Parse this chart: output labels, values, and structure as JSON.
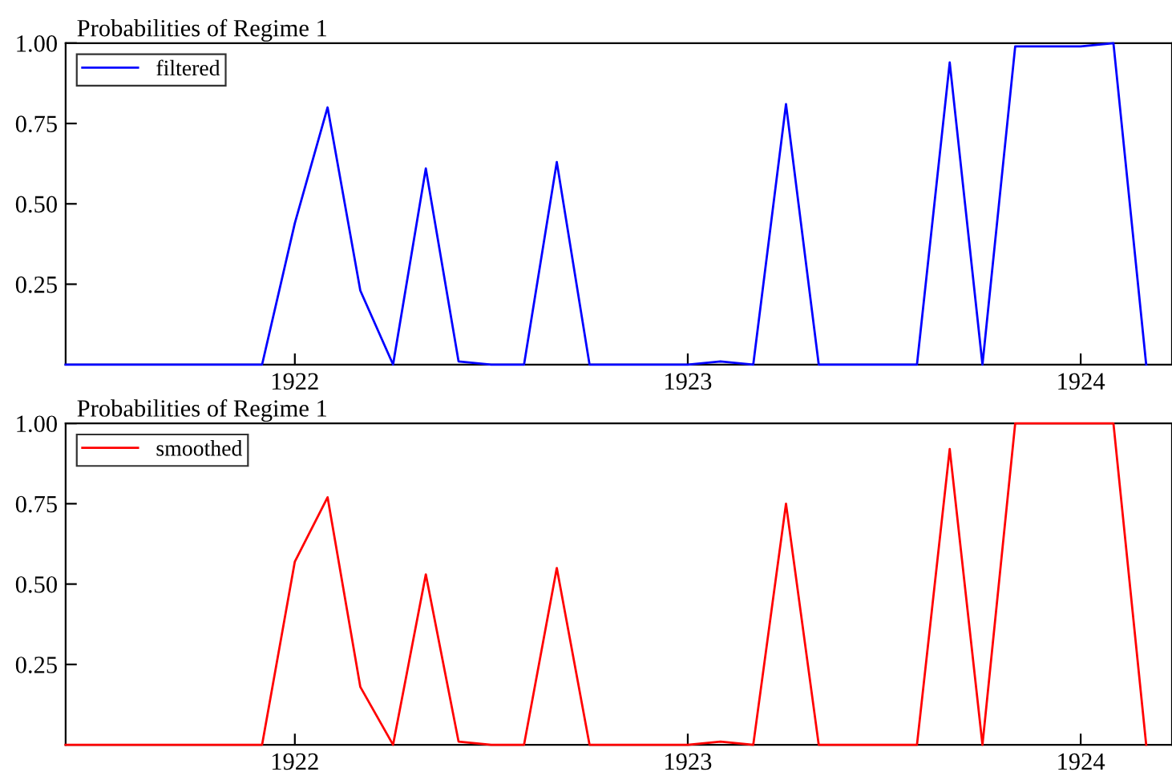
{
  "chart_data": [
    {
      "type": "line",
      "title": "Probabilities of Regime 1",
      "x": [
        "1921-06",
        "1921-07",
        "1921-08",
        "1921-09",
        "1921-10",
        "1921-11",
        "1921-12",
        "1922-01",
        "1922-02",
        "1922-03",
        "1922-04",
        "1922-05",
        "1922-06",
        "1922-07",
        "1922-08",
        "1922-09",
        "1922-10",
        "1922-11",
        "1922-12",
        "1923-01",
        "1923-02",
        "1923-03",
        "1923-04",
        "1923-05",
        "1923-06",
        "1923-07",
        "1923-08",
        "1923-09",
        "1923-10",
        "1923-11",
        "1923-12",
        "1924-01",
        "1924-02",
        "1924-03"
      ],
      "series": [
        {
          "name": "filtered",
          "color": "#0000ff",
          "values": [
            0,
            0,
            0,
            0,
            0,
            0,
            0,
            0.44,
            0.8,
            0.23,
            0,
            0.61,
            0.01,
            0,
            0,
            0.63,
            0,
            0,
            0,
            0,
            0.01,
            0,
            0.81,
            0,
            0,
            0,
            0,
            0.94,
            0,
            0.99,
            0.99,
            0.99,
            1.0,
            0
          ]
        }
      ],
      "xlim": [
        "1921-06",
        "1924-03-25"
      ],
      "xticks": [
        {
          "value": "1922-01",
          "label": "1922"
        },
        {
          "value": "1923-01",
          "label": "1923"
        },
        {
          "value": "1924-01",
          "label": "1924"
        }
      ],
      "ylim": [
        0,
        1
      ],
      "yticks": [
        {
          "value": 0.25,
          "label": "0.25"
        },
        {
          "value": 0.5,
          "label": "0.50"
        },
        {
          "value": 0.75,
          "label": "0.75"
        },
        {
          "value": 1.0,
          "label": "1.00"
        }
      ],
      "legend": "top left",
      "grid": false
    },
    {
      "type": "line",
      "title": "Probabilities of Regime 1",
      "x": [
        "1921-06",
        "1921-07",
        "1921-08",
        "1921-09",
        "1921-10",
        "1921-11",
        "1921-12",
        "1922-01",
        "1922-02",
        "1922-03",
        "1922-04",
        "1922-05",
        "1922-06",
        "1922-07",
        "1922-08",
        "1922-09",
        "1922-10",
        "1922-11",
        "1922-12",
        "1923-01",
        "1923-02",
        "1923-03",
        "1923-04",
        "1923-05",
        "1923-06",
        "1923-07",
        "1923-08",
        "1923-09",
        "1923-10",
        "1923-11",
        "1923-12",
        "1924-01",
        "1924-02",
        "1924-03"
      ],
      "series": [
        {
          "name": "smoothed",
          "color": "#ff0000",
          "values": [
            0,
            0,
            0,
            0,
            0,
            0,
            0,
            0.57,
            0.77,
            0.18,
            0,
            0.53,
            0.01,
            0,
            0,
            0.55,
            0,
            0,
            0,
            0,
            0.01,
            0,
            0.75,
            0,
            0,
            0,
            0,
            0.92,
            0,
            1.0,
            1.0,
            1.0,
            1.0,
            0
          ]
        }
      ],
      "xlim": [
        "1921-06",
        "1924-03-25"
      ],
      "xticks": [
        {
          "value": "1922-01",
          "label": "1922"
        },
        {
          "value": "1923-01",
          "label": "1923"
        },
        {
          "value": "1924-01",
          "label": "1924"
        }
      ],
      "ylim": [
        0,
        1
      ],
      "yticks": [
        {
          "value": 0.25,
          "label": "0.25"
        },
        {
          "value": 0.5,
          "label": "0.50"
        },
        {
          "value": 0.75,
          "label": "0.75"
        },
        {
          "value": 1.0,
          "label": "1.00"
        }
      ],
      "legend": "top left",
      "grid": false
    }
  ]
}
